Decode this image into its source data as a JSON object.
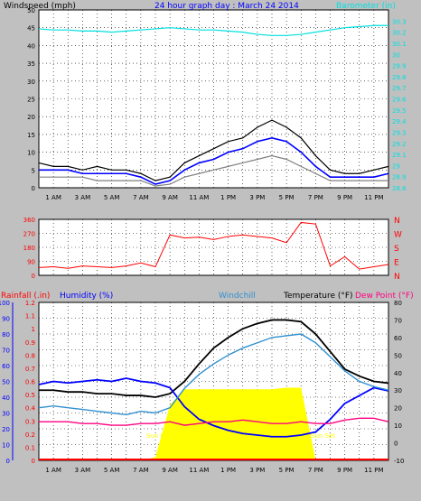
{
  "chart_data": [
    {
      "type": "line",
      "title": "24 hour graph day : March 24 2014",
      "ylabel_left": "Windspeed (mph)",
      "ylabel_right": "Barometer (in)",
      "ylim_left": [
        0,
        50
      ],
      "yticks_left": [
        "0",
        "5",
        "10",
        "15",
        "20",
        "25",
        "30",
        "35",
        "40",
        "45",
        "50"
      ],
      "ylim_right": [
        28.8,
        30.4
      ],
      "yticks_right": [
        "28.8",
        "28.9",
        "29",
        "29.1",
        "29.2",
        "29.3",
        "29.4",
        "29.5",
        "29.6",
        "29.7",
        "29.8",
        "29.9",
        "30",
        "30.1",
        "30.2",
        "30.3"
      ],
      "x_hours": [
        0,
        1,
        2,
        3,
        4,
        5,
        6,
        7,
        8,
        9,
        10,
        11,
        12,
        13,
        14,
        15,
        16,
        17,
        18,
        19,
        20,
        21,
        22,
        23,
        24
      ],
      "xtick_labels": [
        "1 AM",
        "3 AM",
        "5 AM",
        "7 AM",
        "9 AM",
        "11 AM",
        "1 PM",
        "3 PM",
        "5 PM",
        "7 PM",
        "9 PM",
        "11 PM"
      ],
      "grid": true,
      "series": [
        {
          "name": "Gust",
          "color": "#000000",
          "values": [
            7,
            6,
            6,
            5,
            6,
            5,
            5,
            4,
            2,
            3,
            7,
            9,
            11,
            13,
            14,
            17,
            19,
            17,
            14,
            9,
            5,
            4,
            4,
            5,
            6
          ]
        },
        {
          "name": "Average",
          "color": "#0000ff",
          "values": [
            5,
            5,
            5,
            4,
            4,
            4,
            4,
            3,
            1,
            2,
            5,
            7,
            8,
            10,
            11,
            13,
            14,
            13,
            10,
            6,
            3,
            3,
            3,
            3,
            4
          ]
        },
        {
          "name": "Speed",
          "color": "#808080",
          "values": [
            3,
            3,
            3,
            3,
            2,
            2,
            2,
            2,
            0.5,
            1,
            3,
            4,
            5,
            6,
            7,
            8,
            9,
            8,
            6,
            4,
            2,
            2,
            2,
            2,
            2
          ]
        },
        {
          "name": "Barometer",
          "color": "#00e0e0",
          "axis": "right",
          "values": [
            30.23,
            30.22,
            30.22,
            30.21,
            30.21,
            30.2,
            30.21,
            30.22,
            30.23,
            30.24,
            30.23,
            30.22,
            30.22,
            30.21,
            30.2,
            30.18,
            30.17,
            30.17,
            30.18,
            30.2,
            30.22,
            30.24,
            30.25,
            30.26,
            30.26
          ]
        }
      ]
    },
    {
      "type": "scatter",
      "ylabel_right": "Direction",
      "ylim": [
        0,
        360
      ],
      "yticks_left": [
        "0",
        "90",
        "180",
        "270",
        "360"
      ],
      "yticks_right": [
        "N",
        "E",
        "S",
        "W",
        "N"
      ],
      "grid": true,
      "series": [
        {
          "name": "Wind direction",
          "color": "#ff0000",
          "values": [
            50,
            55,
            45,
            60,
            55,
            50,
            60,
            80,
            55,
            260,
            240,
            245,
            230,
            250,
            260,
            250,
            240,
            210,
            340,
            330,
            60,
            120,
            40,
            55,
            70
          ]
        }
      ]
    },
    {
      "type": "line",
      "ylabel_rainfall": "Rainfall (.in)",
      "ylabel_humidity": "Humidity (%)",
      "legend_windchill": "Windchill",
      "legend_temperature": "Temperature (°F)",
      "legend_dewpoint": "Dew Point (°F)",
      "ylim_humidity": [
        0,
        100
      ],
      "yticks_humidity": [
        "0",
        "10",
        "20",
        "30",
        "40",
        "50",
        "60",
        "70",
        "80",
        "90",
        "100"
      ],
      "ylim_rainfall": [
        0,
        1.2
      ],
      "yticks_rainfall": [
        "0",
        "0.1",
        "0.2",
        "0.3",
        "0.4",
        "0.5",
        "0.6",
        "0.7",
        "0.8",
        "0.9",
        "1",
        "1.1",
        "1.2"
      ],
      "ylim_temp": [
        -10,
        80
      ],
      "yticks_temp": [
        "-10",
        "0",
        "10",
        "20",
        "30",
        "40",
        "50",
        "60",
        "70",
        "80"
      ],
      "annotations": [
        "Sun Rise",
        "Sun Set"
      ],
      "grid": true,
      "series": [
        {
          "name": "Temperature",
          "color": "#000000",
          "values": [
            30,
            30,
            29,
            29,
            28,
            28,
            27,
            27,
            26,
            28,
            35,
            45,
            54,
            60,
            65,
            68,
            70,
            70,
            69,
            62,
            52,
            42,
            38,
            35,
            34
          ]
        },
        {
          "name": "Humidity",
          "color": "#0000ff",
          "values": [
            48,
            50,
            49,
            50,
            51,
            50,
            52,
            50,
            49,
            46,
            34,
            26,
            22,
            19,
            17,
            16,
            15,
            15,
            16,
            18,
            26,
            36,
            41,
            46,
            44
          ]
        },
        {
          "name": "Windchill",
          "color": "#3090d0",
          "values": [
            20,
            21,
            20,
            19,
            18,
            17,
            16,
            18,
            17,
            20,
            31,
            39,
            45,
            50,
            54,
            57,
            60,
            61,
            62,
            57,
            49,
            41,
            35,
            32,
            30
          ]
        },
        {
          "name": "Dew Point",
          "color": "#ff0080",
          "values": [
            12,
            12,
            12,
            11,
            11,
            10,
            10,
            11,
            11,
            12,
            10,
            11,
            12,
            12,
            13,
            12,
            11,
            11,
            12,
            11,
            11,
            13,
            14,
            14,
            12
          ]
        },
        {
          "name": "Solar",
          "color": "#ffff00",
          "values": [
            0,
            0,
            0,
            0,
            0,
            0,
            0,
            0,
            2,
            35,
            45,
            45,
            45,
            45,
            45,
            45,
            45,
            46,
            46,
            0,
            0,
            0,
            0,
            0,
            0
          ]
        }
      ]
    }
  ]
}
